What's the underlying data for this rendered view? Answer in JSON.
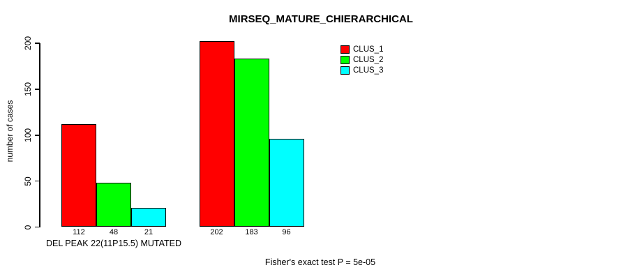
{
  "chart_data": {
    "type": "bar",
    "title": "MIRSEQ_MATURE_CHIERARCHICAL",
    "ylabel": "number of cases",
    "xlabel": "",
    "ylim": [
      0,
      200
    ],
    "yticks": [
      0,
      50,
      100,
      150,
      200
    ],
    "categories": [
      "DEL PEAK 22(11P15.5) MUTATED",
      ""
    ],
    "series": [
      {
        "name": "CLUS_1",
        "color": "#FF0000",
        "values": [
          112,
          202
        ]
      },
      {
        "name": "CLUS_2",
        "color": "#00FF00",
        "values": [
          48,
          183
        ]
      },
      {
        "name": "CLUS_3",
        "color": "#00FFFF",
        "values": [
          21,
          96
        ]
      }
    ],
    "show_value_labels": true,
    "legend_position": "top-right",
    "grid": false,
    "caption": "Fisher's exact test P = 5e-05"
  }
}
